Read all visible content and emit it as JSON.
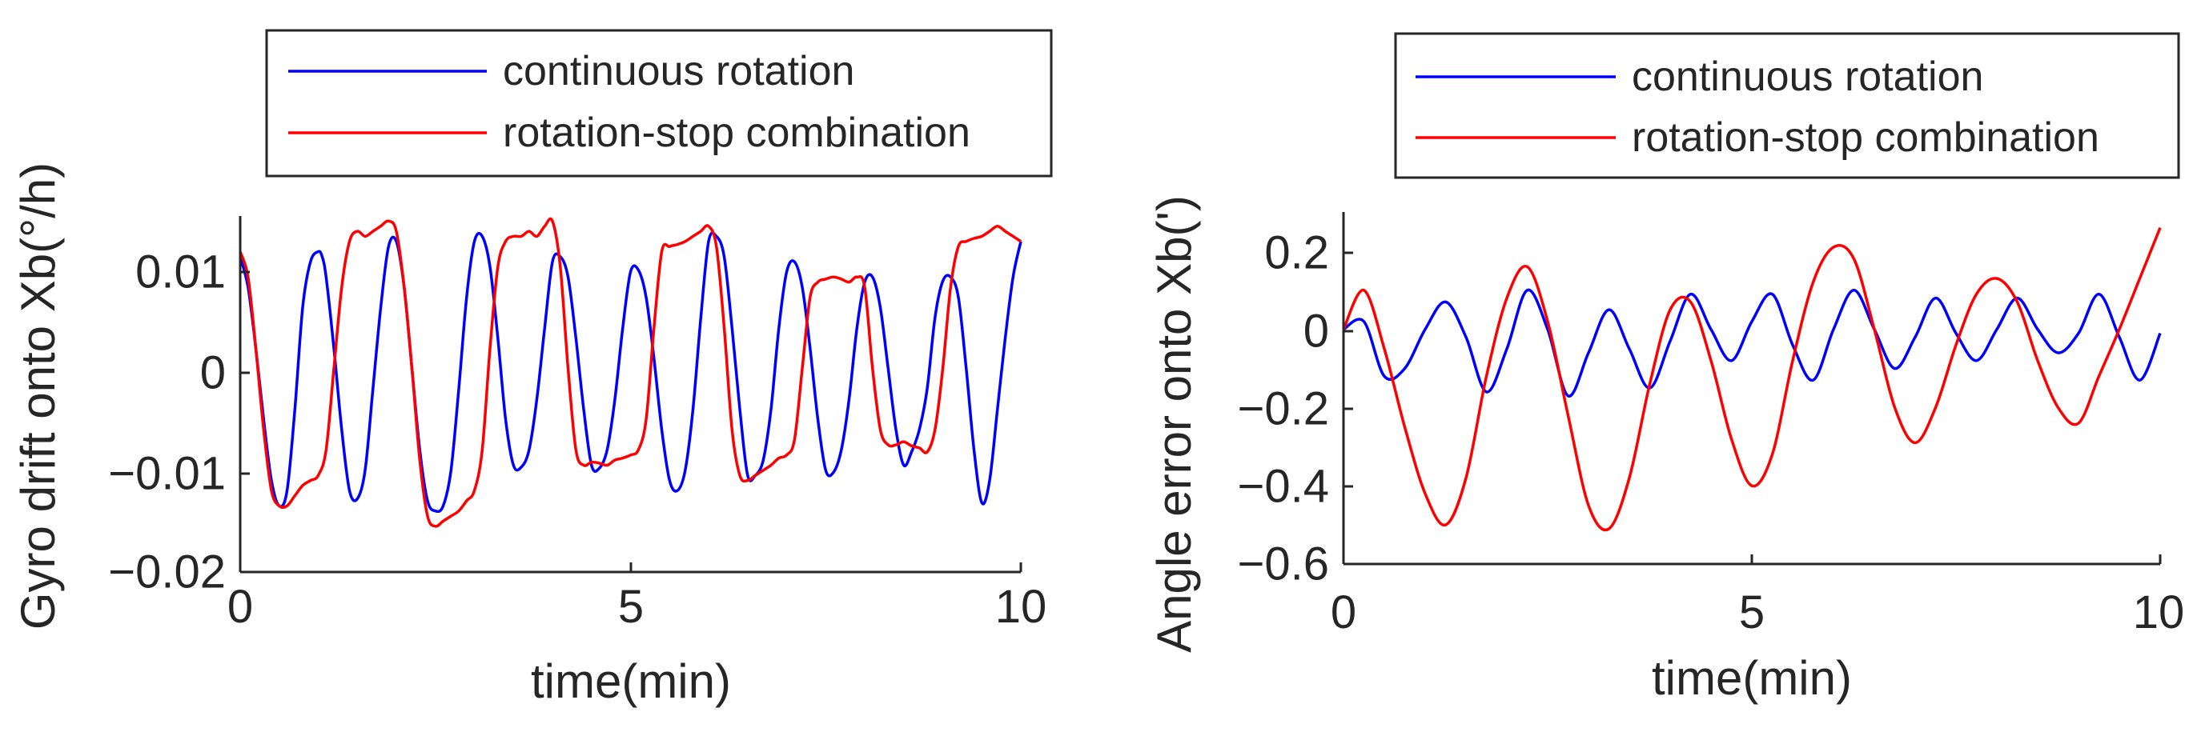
{
  "chart_data": [
    {
      "type": "line",
      "xlabel": "time(min)",
      "ylabel": "Gyro drift onto Xb(°/h)",
      "xlim": [
        0,
        10
      ],
      "ylim": [
        -0.02,
        0.015
      ],
      "xticks": [
        0,
        5,
        10
      ],
      "xtick_labels": [
        "0",
        "5",
        "10"
      ],
      "yticks": [
        0.01,
        0,
        -0.01,
        -0.02
      ],
      "ytick_labels": [
        "0.01",
        "0",
        "−0.01",
        "−0.02"
      ],
      "legend": {
        "location": "top",
        "entries": [
          "continuous rotation",
          "rotation-stop combination"
        ]
      },
      "series": [
        {
          "name": "continuous rotation",
          "color": "#0000ff",
          "x": [
            0,
            0.1,
            0.2,
            0.3,
            0.4,
            0.5,
            0.6,
            0.7,
            0.8,
            0.9,
            1.0,
            1.05,
            1.1,
            1.2,
            1.3,
            1.4,
            1.5,
            1.6,
            1.7,
            1.8,
            1.9,
            2.0,
            2.1,
            2.2,
            2.3,
            2.4,
            2.5,
            2.6,
            2.7,
            2.8,
            2.9,
            3.0,
            3.1,
            3.2,
            3.3,
            3.4,
            3.5,
            3.6,
            3.7,
            3.8,
            3.9,
            4.0,
            4.1,
            4.2,
            4.3,
            4.4,
            4.5,
            4.6,
            4.7,
            4.8,
            4.9,
            5.0,
            5.1,
            5.2,
            5.3,
            5.4,
            5.5,
            5.6,
            5.7,
            5.8,
            5.9,
            6.0,
            6.1,
            6.2,
            6.3,
            6.4,
            6.5,
            6.6,
            6.7,
            6.8,
            6.9,
            7.0,
            7.1,
            7.2,
            7.3,
            7.4,
            7.5,
            7.6,
            7.7,
            7.8,
            7.9,
            8.0,
            8.1,
            8.2,
            8.3,
            8.4,
            8.5,
            8.6,
            8.7,
            8.8,
            8.9,
            9.0,
            9.1,
            9.2,
            9.3,
            9.4,
            9.5,
            9.6,
            9.7,
            9.8,
            9.9,
            10.0
          ],
          "y": [
            0.011,
            0.008,
            0.002,
            -0.005,
            -0.011,
            -0.0135,
            -0.012,
            -0.004,
            0.006,
            0.0105,
            0.0115,
            0.011,
            0.009,
            0.002,
            -0.006,
            -0.012,
            -0.0128,
            -0.01,
            -0.002,
            0.006,
            0.012,
            0.0125,
            0.008,
            0.0,
            -0.008,
            -0.013,
            -0.014,
            -0.0135,
            -0.01,
            -0.002,
            0.007,
            0.0125,
            0.013,
            0.01,
            0.003,
            -0.005,
            -0.0095,
            -0.0097,
            -0.008,
            -0.003,
            0.004,
            0.0105,
            0.011,
            0.009,
            0.003,
            -0.004,
            -0.0095,
            -0.0098,
            -0.008,
            -0.003,
            0.004,
            0.0095,
            0.0097,
            0.007,
            0.001,
            -0.006,
            -0.011,
            -0.012,
            -0.01,
            -0.004,
            0.005,
            0.0125,
            0.013,
            0.011,
            0.004,
            -0.004,
            -0.0105,
            -0.0105,
            -0.009,
            -0.004,
            0.004,
            0.0095,
            0.0105,
            0.008,
            0.002,
            -0.005,
            -0.01,
            -0.0102,
            -0.008,
            -0.003,
            0.004,
            0.0085,
            0.009,
            0.006,
            0.0,
            -0.006,
            -0.0095,
            -0.0082,
            -0.006,
            -0.002,
            0.005,
            0.0086,
            0.009,
            0.007,
            0.0,
            -0.008,
            -0.0132,
            -0.011,
            -0.004,
            0.003,
            0.009,
            0.0125
          ],
          "smooth": true
        },
        {
          "name": "rotation-stop combination",
          "color": "#ff0000",
          "x": [
            0,
            0.1,
            0.2,
            0.3,
            0.4,
            0.5,
            0.6,
            0.7,
            0.8,
            0.9,
            1.0,
            1.1,
            1.2,
            1.3,
            1.4,
            1.5,
            1.6,
            1.7,
            1.8,
            1.9,
            2.0,
            2.1,
            2.2,
            2.3,
            2.4,
            2.5,
            2.6,
            2.7,
            2.8,
            2.9,
            3.0,
            3.1,
            3.2,
            3.3,
            3.4,
            3.5,
            3.6,
            3.7,
            3.8,
            3.9,
            4.0,
            4.1,
            4.2,
            4.3,
            4.4,
            4.5,
            4.6,
            4.7,
            4.8,
            4.9,
            5.0,
            5.1,
            5.2,
            5.3,
            5.4,
            5.5,
            5.6,
            5.7,
            5.8,
            5.9,
            6.0,
            6.1,
            6.2,
            6.3,
            6.4,
            6.5,
            6.6,
            6.7,
            6.8,
            6.9,
            7.0,
            7.1,
            7.2,
            7.3,
            7.4,
            7.5,
            7.6,
            7.7,
            7.8,
            7.9,
            8.0,
            8.1,
            8.2,
            8.3,
            8.4,
            8.5,
            8.6,
            8.7,
            8.8,
            8.9,
            9.0,
            9.1,
            9.2,
            9.3,
            9.4,
            9.5,
            9.6,
            9.7,
            9.8,
            9.9,
            10.0
          ],
          "y": [
            0.0115,
            0.009,
            0.002,
            -0.006,
            -0.012,
            -0.0135,
            -0.0135,
            -0.0125,
            -0.0115,
            -0.011,
            -0.0105,
            -0.008,
            0.0,
            0.008,
            0.0125,
            0.0135,
            0.013,
            0.0135,
            0.014,
            0.0145,
            0.0135,
            0.008,
            0.0,
            -0.009,
            -0.0145,
            -0.0155,
            -0.015,
            -0.0145,
            -0.014,
            -0.013,
            -0.012,
            -0.008,
            0.002,
            0.01,
            0.0125,
            0.013,
            0.013,
            0.0135,
            0.013,
            0.014,
            0.0145,
            0.01,
            0.0,
            -0.008,
            -0.0095,
            -0.0092,
            -0.0093,
            -0.0095,
            -0.009,
            -0.0088,
            -0.0085,
            -0.008,
            -0.005,
            0.004,
            0.0115,
            0.012,
            0.0122,
            0.0125,
            0.013,
            0.0135,
            0.014,
            0.012,
            0.004,
            -0.006,
            -0.0105,
            -0.011,
            -0.0105,
            -0.01,
            -0.0095,
            -0.0088,
            -0.0085,
            -0.007,
            0.0,
            0.007,
            0.0085,
            0.0088,
            0.009,
            0.0088,
            0.0085,
            0.009,
            0.008,
            0.0,
            -0.006,
            -0.0075,
            -0.0075,
            -0.0072,
            -0.0076,
            -0.0078,
            -0.0082,
            -0.006,
            0.0,
            0.008,
            0.012,
            0.0125,
            0.0128,
            0.013,
            0.0135,
            0.014,
            0.0135,
            0.013,
            0.0125
          ],
          "smooth": true
        }
      ]
    },
    {
      "type": "line",
      "xlabel": "time(min)",
      "ylabel": "Angle error onto Xb(')",
      "xlim": [
        0,
        10
      ],
      "ylim": [
        -0.6,
        0.3
      ],
      "xticks": [
        0,
        5,
        10
      ],
      "xtick_labels": [
        "0",
        "5",
        "10"
      ],
      "yticks": [
        0.2,
        0,
        -0.2,
        -0.4,
        -0.6
      ],
      "ytick_labels": [
        "0.2",
        "0",
        "−0.2",
        "−0.4",
        "−0.6"
      ],
      "legend": {
        "location": "top",
        "entries": [
          "continuous rotation",
          "rotation-stop combination"
        ]
      },
      "series": [
        {
          "name": "continuous rotation",
          "color": "#0000ff",
          "x": [
            0,
            0.25,
            0.5,
            0.75,
            1.0,
            1.25,
            1.5,
            1.75,
            2.0,
            2.25,
            2.5,
            2.75,
            3.0,
            3.25,
            3.5,
            3.75,
            4.0,
            4.25,
            4.5,
            4.75,
            5.0,
            5.25,
            5.5,
            5.75,
            6.0,
            6.25,
            6.5,
            6.75,
            7.0,
            7.25,
            7.5,
            7.75,
            8.0,
            8.25,
            8.5,
            8.75,
            9.0,
            9.25,
            9.5,
            9.75,
            10.0
          ],
          "y": [
            0.0,
            0.02,
            -0.12,
            -0.1,
            0.0,
            0.07,
            -0.02,
            -0.16,
            -0.05,
            0.1,
            0.0,
            -0.17,
            -0.06,
            0.05,
            -0.05,
            -0.15,
            -0.03,
            0.09,
            0.0,
            -0.08,
            0.02,
            0.09,
            -0.04,
            -0.13,
            0.0,
            0.1,
            0.0,
            -0.1,
            -0.02,
            0.08,
            -0.01,
            -0.08,
            0.0,
            0.08,
            0.0,
            -0.06,
            -0.01,
            0.09,
            -0.02,
            -0.13,
            -0.01
          ],
          "smooth": true
        },
        {
          "name": "rotation-stop combination",
          "color": "#ff0000",
          "x": [
            0,
            0.25,
            0.5,
            0.75,
            1.0,
            1.25,
            1.5,
            1.75,
            2.0,
            2.25,
            2.5,
            2.75,
            3.0,
            3.25,
            3.5,
            3.75,
            4.0,
            4.25,
            4.5,
            4.75,
            5.0,
            5.25,
            5.5,
            5.75,
            6.0,
            6.25,
            6.5,
            6.75,
            7.0,
            7.25,
            7.5,
            7.75,
            8.0,
            8.25,
            8.5,
            8.75,
            9.0,
            9.25,
            9.5,
            9.75,
            10.0
          ],
          "y": [
            0.0,
            0.1,
            -0.05,
            -0.25,
            -0.42,
            -0.5,
            -0.38,
            -0.12,
            0.08,
            0.16,
            0.02,
            -0.22,
            -0.45,
            -0.51,
            -0.38,
            -0.14,
            0.05,
            0.07,
            -0.08,
            -0.28,
            -0.4,
            -0.32,
            -0.08,
            0.12,
            0.21,
            0.18,
            0.0,
            -0.2,
            -0.29,
            -0.2,
            -0.04,
            0.09,
            0.13,
            0.07,
            -0.08,
            -0.2,
            -0.24,
            -0.12,
            0.0,
            0.13,
            0.26
          ],
          "smooth": true
        }
      ]
    }
  ]
}
